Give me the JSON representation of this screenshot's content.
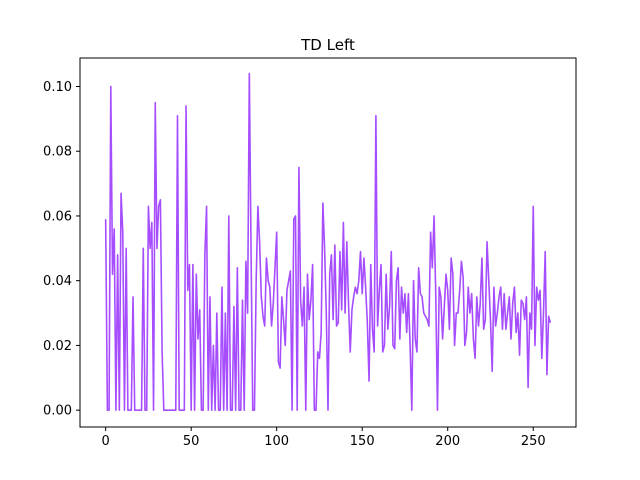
{
  "chart_data": {
    "type": "line",
    "title": "TD Left",
    "xlabel": "",
    "ylabel": "",
    "xlim": [
      -15,
      275
    ],
    "ylim": [
      -0.0052,
      0.1088
    ],
    "xticks": [
      0,
      50,
      100,
      150,
      200,
      250
    ],
    "xtick_labels": [
      "0",
      "50",
      "100",
      "150",
      "200",
      "250"
    ],
    "yticks": [
      0.0,
      0.02,
      0.04,
      0.06,
      0.08,
      0.1
    ],
    "ytick_labels": [
      "0.00",
      "0.02",
      "0.04",
      "0.06",
      "0.08",
      "0.10"
    ],
    "grid": false,
    "legend": "none",
    "color": "#a64dff",
    "series": [
      {
        "x": [
          0,
          1,
          2,
          3,
          4,
          5,
          6,
          7,
          8,
          9,
          10,
          11,
          12,
          13,
          14,
          15,
          16,
          17,
          18,
          19,
          20,
          21,
          22,
          23,
          24,
          25,
          26,
          27,
          28,
          29,
          30,
          31,
          32,
          33,
          34,
          35,
          36,
          37,
          38,
          39,
          40,
          41,
          42,
          43,
          44,
          45,
          46,
          47,
          48,
          49,
          50,
          51,
          52,
          53,
          54,
          55,
          56,
          57,
          58,
          59,
          60,
          61,
          62,
          63,
          64,
          65,
          66,
          67,
          68,
          69,
          70,
          71,
          72,
          73,
          74,
          75,
          76,
          77,
          78,
          79,
          80,
          81,
          82,
          83,
          84,
          85,
          86,
          87,
          88,
          89,
          90,
          91,
          92,
          93,
          94,
          95,
          96,
          97,
          98,
          99,
          100,
          101,
          102,
          103,
          104,
          105,
          106,
          107,
          108,
          109,
          110,
          111,
          112,
          113,
          114,
          115,
          116,
          117,
          118,
          119,
          120,
          121,
          122,
          123,
          124,
          125,
          126,
          127,
          128,
          129,
          130,
          131,
          132,
          133,
          134,
          135,
          136,
          137,
          138,
          139,
          140,
          141,
          142,
          143,
          144,
          145,
          146,
          147,
          148,
          149,
          150,
          151,
          152,
          153,
          154,
          155,
          156,
          157,
          158,
          159,
          160,
          161,
          162,
          163,
          164,
          165,
          166,
          167,
          168,
          169,
          170,
          171,
          172,
          173,
          174,
          175,
          176,
          177,
          178,
          179,
          180,
          181,
          182,
          183,
          184,
          185,
          186,
          187,
          188,
          189,
          190,
          191,
          192,
          193,
          194,
          195,
          196,
          197,
          198,
          199,
          200,
          201,
          202,
          203,
          204,
          205,
          206,
          207,
          208,
          209,
          210,
          211,
          212,
          213,
          214,
          215,
          216,
          217,
          218,
          219,
          220,
          221,
          222,
          223,
          224,
          225,
          226,
          227,
          228,
          229,
          230,
          231,
          232,
          233,
          234,
          235,
          236,
          237,
          238,
          239,
          240,
          241,
          242,
          243,
          244,
          245,
          246,
          247,
          248,
          249,
          250,
          251,
          252,
          253,
          254,
          255,
          256,
          257,
          258,
          259,
          260
        ],
        "y": [
          0.059,
          0.0,
          0.0,
          0.1,
          0.042,
          0.056,
          0.0,
          0.048,
          0.0,
          0.067,
          0.055,
          0.0,
          0.05,
          0.0,
          0.0,
          0.0,
          0.035,
          0.0,
          0.0,
          0.0,
          0.0,
          0.0,
          0.05,
          0.0,
          0.0,
          0.063,
          0.05,
          0.058,
          0.0,
          0.095,
          0.05,
          0.063,
          0.065,
          0.018,
          0.0,
          0.0,
          0.0,
          0.0,
          0.0,
          0.0,
          0.0,
          0.0,
          0.091,
          0.0,
          0.0,
          0.0,
          0.0,
          0.094,
          0.037,
          0.045,
          0.0,
          0.045,
          0.0,
          0.042,
          0.022,
          0.031,
          0.0,
          0.0,
          0.048,
          0.063,
          0.0,
          0.035,
          0.0,
          0.02,
          0.0,
          0.03,
          0.0,
          0.0,
          0.038,
          0.0,
          0.03,
          0.0,
          0.06,
          0.0,
          0.0,
          0.032,
          0.0,
          0.044,
          0.0,
          0.0,
          0.034,
          0.0,
          0.046,
          0.03,
          0.104,
          0.05,
          0.0,
          0.0,
          0.04,
          0.063,
          0.052,
          0.035,
          0.029,
          0.026,
          0.047,
          0.04,
          0.038,
          0.026,
          0.033,
          0.044,
          0.055,
          0.015,
          0.013,
          0.035,
          0.028,
          0.02,
          0.037,
          0.04,
          0.043,
          0.0,
          0.059,
          0.06,
          0.0,
          0.075,
          0.034,
          0.026,
          0.038,
          0.0,
          0.042,
          0.028,
          0.034,
          0.045,
          0.0,
          0.0,
          0.018,
          0.016,
          0.024,
          0.064,
          0.05,
          0.03,
          0.0,
          0.042,
          0.048,
          0.028,
          0.051,
          0.026,
          0.027,
          0.049,
          0.031,
          0.058,
          0.03,
          0.052,
          0.033,
          0.018,
          0.031,
          0.035,
          0.038,
          0.036,
          0.04,
          0.049,
          0.036,
          0.047,
          0.038,
          0.027,
          0.009,
          0.045,
          0.025,
          0.018,
          0.091,
          0.026,
          0.037,
          0.045,
          0.018,
          0.02,
          0.042,
          0.025,
          0.032,
          0.049,
          0.02,
          0.019,
          0.04,
          0.044,
          0.022,
          0.038,
          0.03,
          0.036,
          0.024,
          0.036,
          0.02,
          0.0,
          0.04,
          0.022,
          0.018,
          0.044,
          0.036,
          0.035,
          0.03,
          0.029,
          0.028,
          0.026,
          0.055,
          0.044,
          0.06,
          0.036,
          0.0,
          0.038,
          0.035,
          0.022,
          0.032,
          0.042,
          0.037,
          0.025,
          0.047,
          0.042,
          0.02,
          0.03,
          0.03,
          0.037,
          0.046,
          0.041,
          0.02,
          0.024,
          0.038,
          0.03,
          0.036,
          0.022,
          0.016,
          0.035,
          0.026,
          0.033,
          0.047,
          0.025,
          0.028,
          0.052,
          0.04,
          0.028,
          0.012,
          0.038,
          0.026,
          0.03,
          0.035,
          0.038,
          0.025,
          0.036,
          0.025,
          0.03,
          0.035,
          0.022,
          0.033,
          0.038,
          0.024,
          0.03,
          0.017,
          0.034,
          0.033,
          0.028,
          0.035,
          0.007,
          0.03,
          0.025,
          0.063,
          0.02,
          0.038,
          0.034,
          0.037,
          0.016,
          0.03,
          0.049,
          0.011,
          0.029,
          0.027
        ]
      }
    ]
  }
}
